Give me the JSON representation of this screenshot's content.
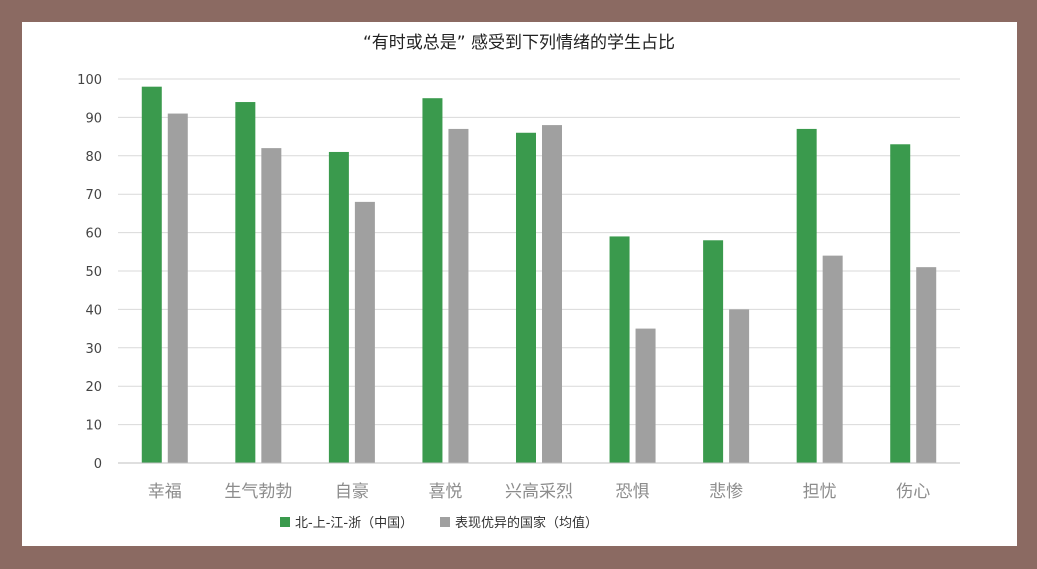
{
  "chart_data": {
    "type": "bar",
    "title": "“有时或总是” 感受到下列情绪的学生占比",
    "xlabel": "",
    "ylabel": "",
    "ylim": [
      0,
      100
    ],
    "yticks": [
      0,
      10,
      20,
      30,
      40,
      50,
      60,
      70,
      80,
      90,
      100
    ],
    "categories": [
      "幸福",
      "生气勃勃",
      "自豪",
      "喜悦",
      "兴高采烈",
      "恐惧",
      "悲惨",
      "担忧",
      "伤心"
    ],
    "series": [
      {
        "name": "北-上-江-浙（中国）",
        "color": "#3a9a4d",
        "values": [
          98,
          94,
          81,
          95,
          86,
          59,
          58,
          87,
          83
        ]
      },
      {
        "name": "表现优异的国家（均值）",
        "color": "#a0a0a0",
        "values": [
          91,
          82,
          68,
          87,
          88,
          35,
          40,
          54,
          51
        ]
      }
    ],
    "grid": true,
    "legend_position": "bottom-left"
  }
}
